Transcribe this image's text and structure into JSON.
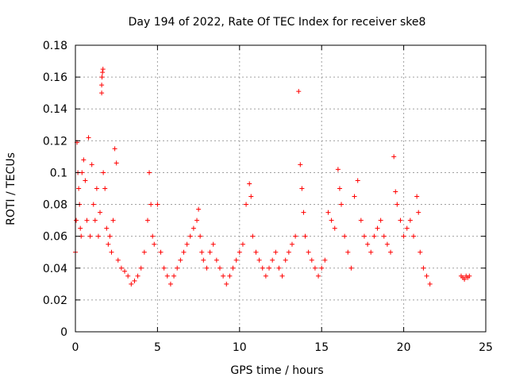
{
  "chart_data": {
    "type": "scatter",
    "title": "Day 194 of 2022, Rate Of TEC Index for receiver ske8",
    "xlabel": "GPS time / hours",
    "ylabel": "ROTI / TECUs",
    "xlim": [
      0,
      25
    ],
    "ylim": [
      0,
      0.18
    ],
    "x_ticks": [
      0,
      5,
      10,
      15,
      20,
      25
    ],
    "x_tick_labels": [
      "0",
      "5",
      "10",
      "15",
      "20",
      "25"
    ],
    "y_ticks": [
      0,
      0.02,
      0.04,
      0.06,
      0.08,
      0.1,
      0.12,
      0.14,
      0.16,
      0.18
    ],
    "y_tick_labels": [
      "0",
      "0.02",
      "0.04",
      "0.06",
      "0.08",
      "0.1",
      "0.12",
      "0.14",
      "0.16",
      "0.18"
    ],
    "grid": true,
    "marker": "plus",
    "color": "#ff0000",
    "series": [
      {
        "x": [
          0.0,
          0.05,
          0.1,
          0.15,
          0.2,
          0.25,
          0.3,
          0.35,
          0.4,
          0.5,
          0.6,
          0.7,
          0.8,
          0.9,
          1.0,
          1.1,
          1.2,
          1.3,
          1.4,
          1.5,
          1.6,
          1.6,
          1.62,
          1.65,
          1.68,
          1.7,
          1.8,
          1.9,
          2.0,
          2.1,
          2.2,
          2.3,
          2.4,
          2.5,
          2.6,
          2.8,
          3.0,
          3.2,
          3.4,
          3.6,
          3.8,
          4.0,
          4.2,
          4.4,
          4.5,
          4.6,
          4.7,
          4.8,
          5.0,
          5.2,
          5.4,
          5.6,
          5.8,
          6.0,
          6.2,
          6.4,
          6.6,
          6.8,
          7.0,
          7.2,
          7.4,
          7.5,
          7.6,
          7.7,
          7.8,
          8.0,
          8.2,
          8.4,
          8.6,
          8.8,
          9.0,
          9.2,
          9.4,
          9.6,
          9.8,
          10.0,
          10.2,
          10.4,
          10.6,
          10.7,
          10.8,
          11.0,
          11.2,
          11.4,
          11.6,
          11.8,
          12.0,
          12.2,
          12.4,
          12.6,
          12.8,
          13.0,
          13.2,
          13.4,
          13.6,
          13.7,
          13.8,
          13.9,
          14.0,
          14.2,
          14.4,
          14.6,
          14.8,
          15.0,
          15.2,
          15.4,
          15.6,
          15.8,
          16.0,
          16.1,
          16.2,
          16.4,
          16.6,
          16.8,
          17.0,
          17.2,
          17.4,
          17.6,
          17.8,
          18.0,
          18.2,
          18.4,
          18.6,
          18.8,
          19.0,
          19.2,
          19.4,
          19.5,
          19.6,
          19.8,
          20.0,
          20.2,
          20.4,
          20.6,
          20.8,
          20.9,
          21.0,
          21.2,
          21.4,
          21.6,
          23.5,
          23.6,
          23.7,
          23.8,
          23.9,
          24.0
        ],
        "y": [
          0.05,
          0.07,
          0.119,
          0.1,
          0.09,
          0.08,
          0.065,
          0.06,
          0.1,
          0.108,
          0.095,
          0.07,
          0.122,
          0.06,
          0.105,
          0.08,
          0.07,
          0.09,
          0.06,
          0.075,
          0.15,
          0.155,
          0.16,
          0.163,
          0.165,
          0.1,
          0.09,
          0.065,
          0.055,
          0.06,
          0.05,
          0.07,
          0.115,
          0.106,
          0.045,
          0.04,
          0.038,
          0.035,
          0.03,
          0.032,
          0.035,
          0.04,
          0.05,
          0.07,
          0.1,
          0.08,
          0.06,
          0.055,
          0.08,
          0.05,
          0.04,
          0.035,
          0.03,
          0.035,
          0.04,
          0.045,
          0.05,
          0.055,
          0.06,
          0.065,
          0.07,
          0.077,
          0.06,
          0.05,
          0.045,
          0.04,
          0.05,
          0.055,
          0.045,
          0.04,
          0.035,
          0.03,
          0.035,
          0.04,
          0.045,
          0.05,
          0.055,
          0.08,
          0.093,
          0.085,
          0.06,
          0.05,
          0.045,
          0.04,
          0.035,
          0.04,
          0.045,
          0.05,
          0.04,
          0.035,
          0.045,
          0.05,
          0.055,
          0.06,
          0.151,
          0.105,
          0.09,
          0.075,
          0.06,
          0.05,
          0.045,
          0.04,
          0.035,
          0.04,
          0.045,
          0.075,
          0.07,
          0.065,
          0.102,
          0.09,
          0.08,
          0.06,
          0.05,
          0.04,
          0.085,
          0.095,
          0.07,
          0.06,
          0.055,
          0.05,
          0.06,
          0.065,
          0.07,
          0.06,
          0.055,
          0.05,
          0.11,
          0.088,
          0.08,
          0.07,
          0.06,
          0.065,
          0.07,
          0.06,
          0.085,
          0.075,
          0.05,
          0.04,
          0.035,
          0.03,
          0.035,
          0.034,
          0.033,
          0.035,
          0.034,
          0.035
        ]
      }
    ]
  }
}
